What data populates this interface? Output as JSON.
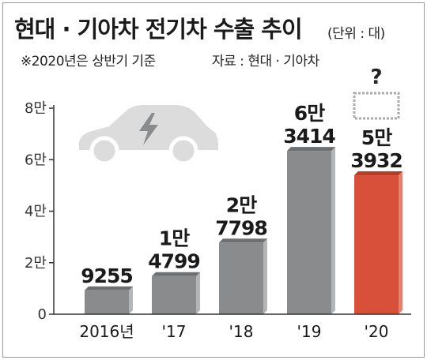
{
  "chart_data": {
    "type": "bar",
    "title": "현대 · 기아차 전기차 수출 추이",
    "unit_note": "(단위 : 대)",
    "footnote": "※2020년은 상반기 기준",
    "source": "자료 : 현대 · 기아차",
    "categories": [
      "2016년",
      "'17",
      "'18",
      "'19",
      "'20"
    ],
    "values": [
      9255,
      14799,
      27798,
      63414,
      53932
    ],
    "value_labels": [
      [
        "9255"
      ],
      [
        "1만",
        "4799"
      ],
      [
        "2만",
        "7798"
      ],
      [
        "6만",
        "3414"
      ],
      [
        "5만",
        "3932"
      ]
    ],
    "y_ticks": [
      {
        "value": 0,
        "label": "0"
      },
      {
        "value": 20000,
        "label": "2만"
      },
      {
        "value": 40000,
        "label": "4만"
      },
      {
        "value": 60000,
        "label": "6만"
      },
      {
        "value": 80000,
        "label": "8만"
      }
    ],
    "ylim": [
      0,
      80000
    ],
    "grid": false,
    "highlight_index": 4,
    "highlight_annotation": "?",
    "colors": {
      "bar": "#8a8b8d",
      "bar_side": "#b4b5b7",
      "bar_top": "#6e6f71",
      "highlight": "#d9503a",
      "highlight_side": "#e98070",
      "highlight_top": "#b83b28",
      "car": "#dcdcdc",
      "bolt": "#8a8b8d"
    },
    "decoration": "electric-car-icon"
  }
}
